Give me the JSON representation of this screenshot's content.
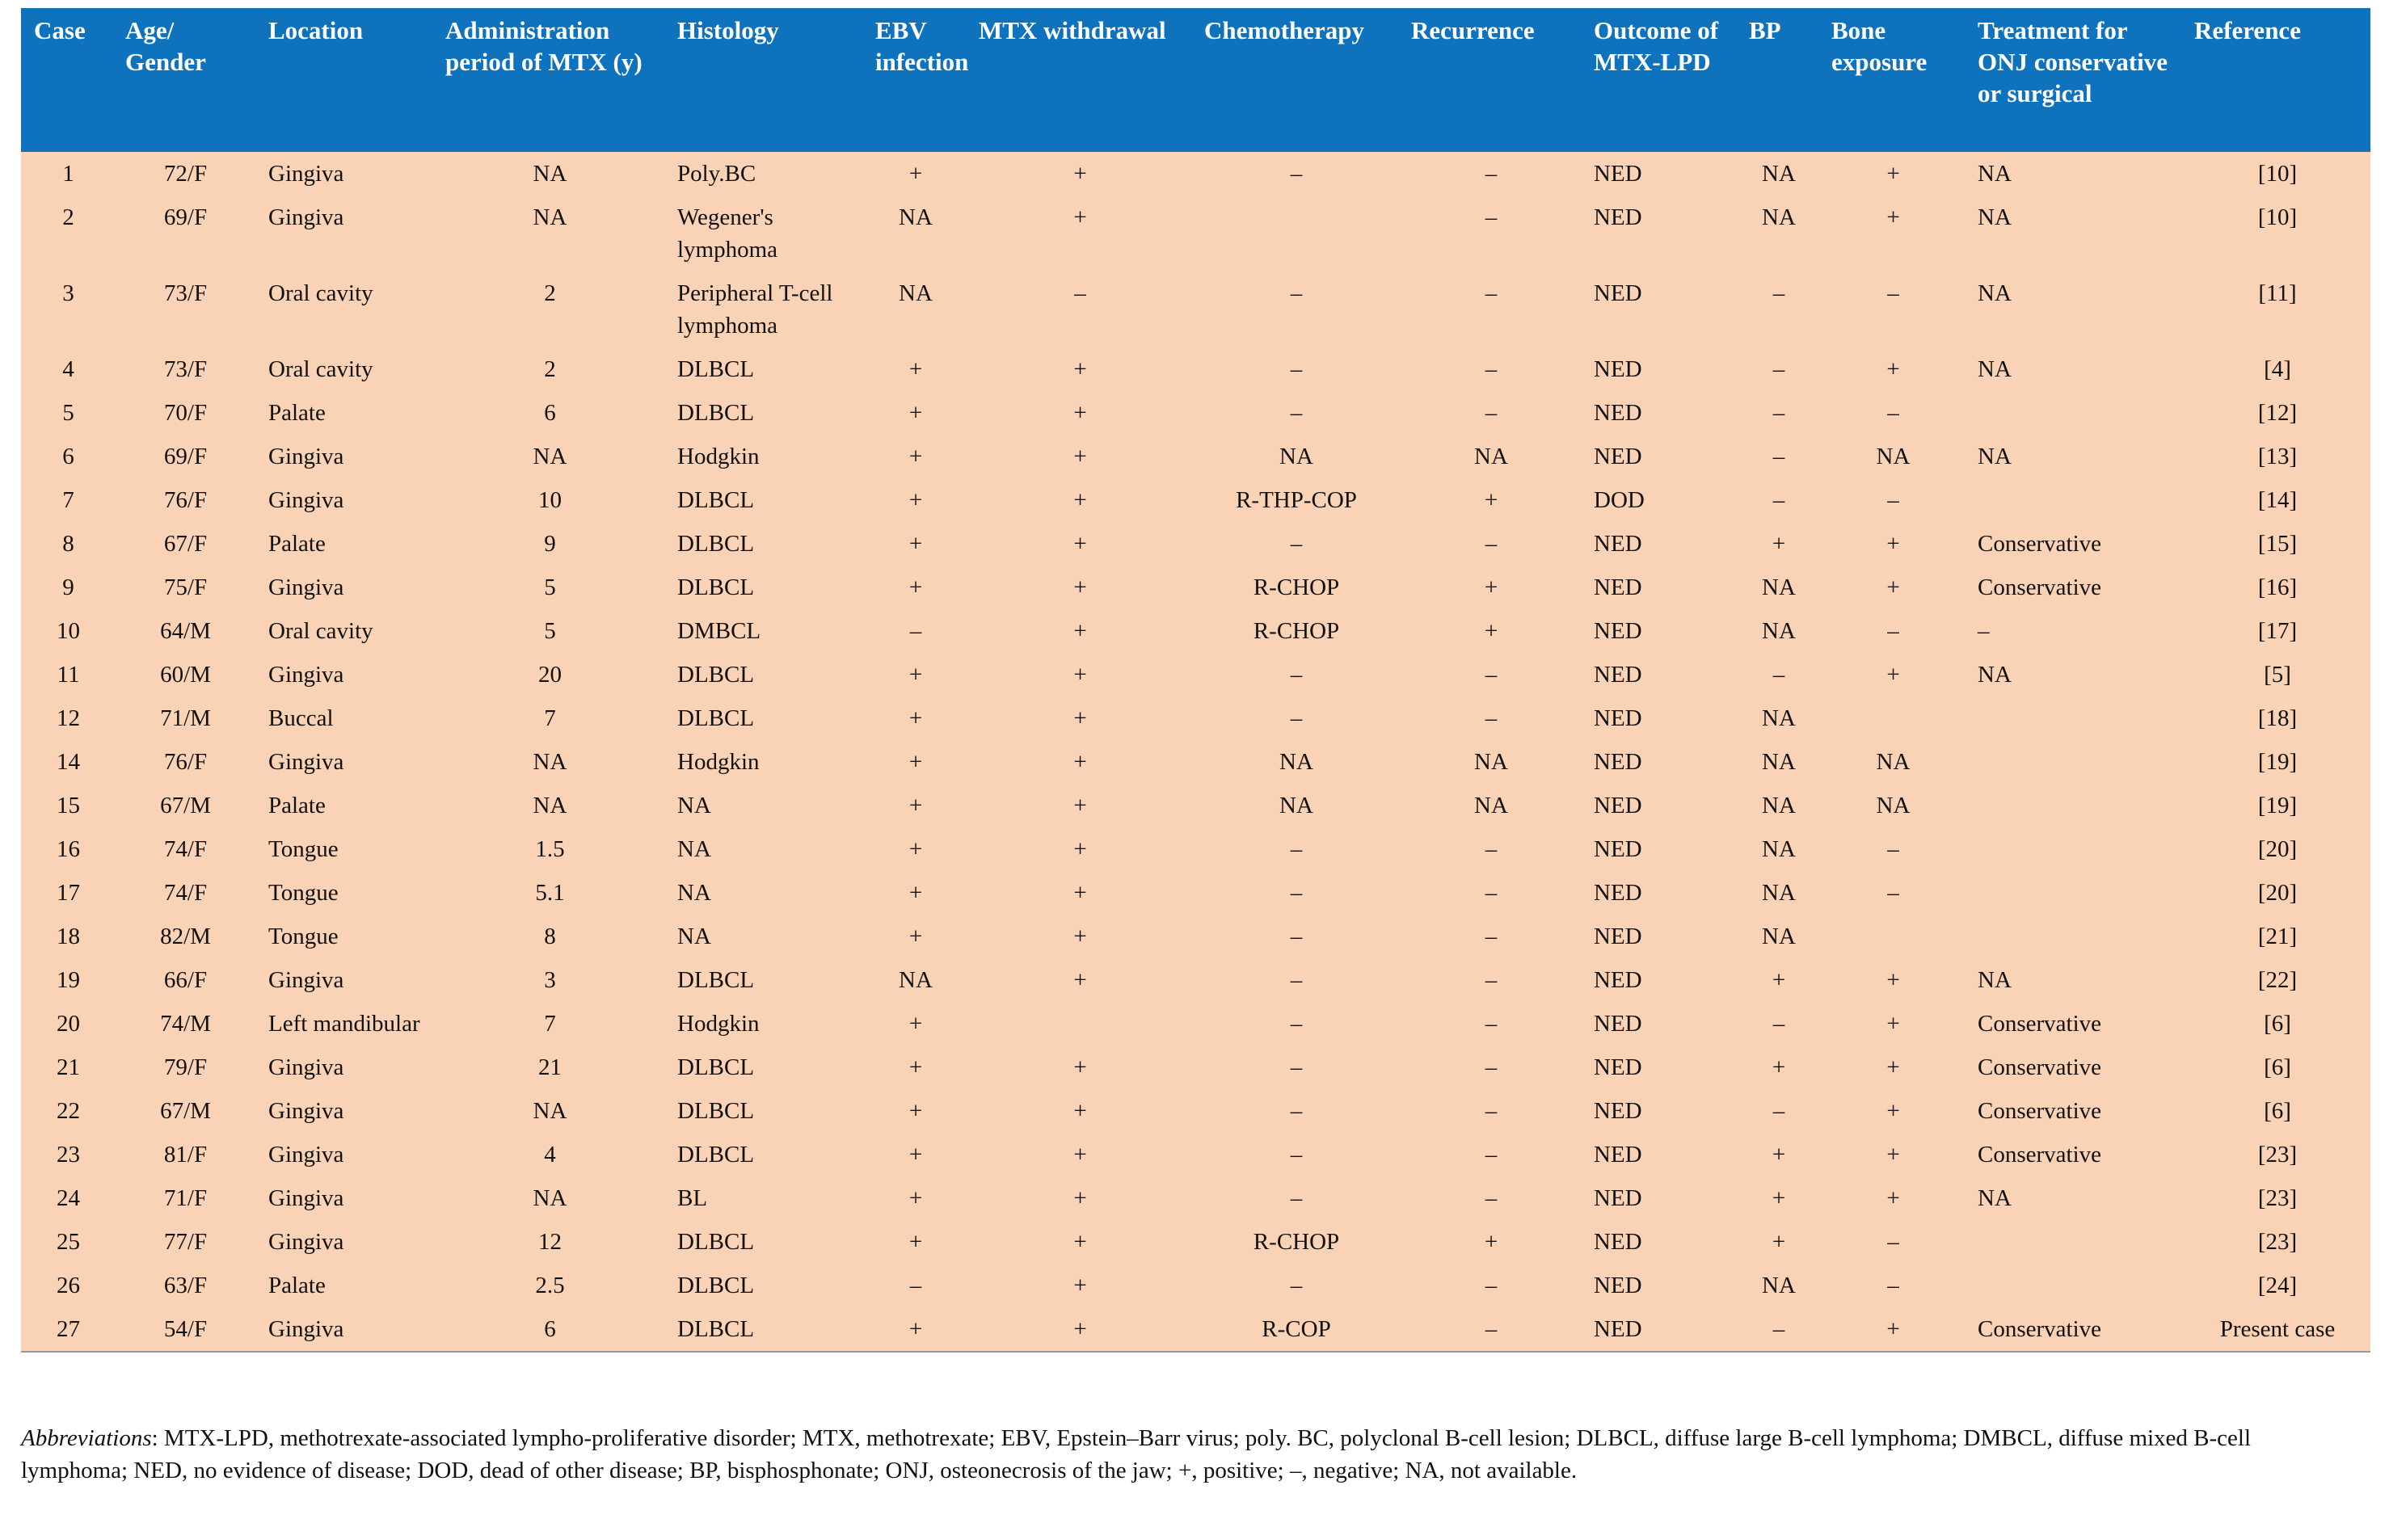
{
  "header": {
    "columns": [
      "Case",
      "Age/ Gender",
      "Location",
      "Administration period of MTX (y)",
      "Histology",
      "EBV infection",
      "MTX withdrawal",
      "Chemotherapy",
      "Recurrence",
      "Outcome of MTX-LPD",
      "BP",
      "Bone exposure",
      "Treatment for ONJ conservative or surgical",
      "Reference"
    ]
  },
  "table": {
    "rows": [
      [
        "1",
        "72/F",
        "Gingiva",
        "NA",
        "Poly.BC",
        "+",
        "+",
        "–",
        "–",
        "NED",
        "NA",
        "+",
        "NA",
        "[10]"
      ],
      [
        "2",
        "69/F",
        "Gingiva",
        "NA",
        "Wegener's lymphoma",
        "NA",
        "+",
        null,
        "–",
        "NED",
        "NA",
        "+",
        "NA",
        "[10]"
      ],
      [
        "3",
        "73/F",
        "Oral cavity",
        "2",
        "Peripheral T-cell lymphoma",
        "NA",
        "–",
        "–",
        "–",
        "NED",
        "–",
        "–",
        "NA",
        "[11]"
      ],
      [
        "4",
        "73/F",
        "Oral cavity",
        "2",
        "DLBCL",
        "+",
        "+",
        "–",
        "–",
        "NED",
        "–",
        "+",
        "NA",
        "[4]"
      ],
      [
        "5",
        "70/F",
        "Palate",
        "6",
        "DLBCL",
        "+",
        "+",
        "–",
        "–",
        "NED",
        "–",
        "–",
        null,
        "[12]"
      ],
      [
        "6",
        "69/F",
        "Gingiva",
        "NA",
        "Hodgkin",
        "+",
        "+",
        "NA",
        "NA",
        "NED",
        "–",
        "NA",
        "NA",
        "[13]"
      ],
      [
        "7",
        "76/F",
        "Gingiva",
        "10",
        "DLBCL",
        "+",
        "+",
        "R-THP-COP",
        "+",
        "DOD",
        "–",
        "–",
        null,
        "[14]"
      ],
      [
        "8",
        "67/F",
        "Palate",
        "9",
        "DLBCL",
        "+",
        "+",
        "–",
        "–",
        "NED",
        "+",
        "+",
        "Conservative",
        "[15]"
      ],
      [
        "9",
        "75/F",
        "Gingiva",
        "5",
        "DLBCL",
        "+",
        "+",
        "R-CHOP",
        "+",
        "NED",
        "NA",
        "+",
        "Conservative",
        "[16]"
      ],
      [
        "10",
        "64/M",
        "Oral cavity",
        "5",
        "DMBCL",
        "–",
        "+",
        "R-CHOP",
        "+",
        "NED",
        "NA",
        "–",
        "–",
        "[17]"
      ],
      [
        "11",
        "60/M",
        "Gingiva",
        "20",
        "DLBCL",
        "+",
        "+",
        "–",
        "–",
        "NED",
        "–",
        "+",
        "NA",
        "[5]"
      ],
      [
        "12",
        "71/M",
        "Buccal",
        "7",
        "DLBCL",
        "+",
        "+",
        "–",
        "–",
        "NED",
        "NA",
        null,
        null,
        "[18]"
      ],
      [
        "14",
        "76/F",
        "Gingiva",
        "NA",
        "Hodgkin",
        "+",
        "+",
        "NA",
        "NA",
        "NED",
        "NA",
        "NA",
        null,
        "[19]"
      ],
      [
        "15",
        "67/M",
        "Palate",
        "NA",
        "NA",
        "+",
        "+",
        "NA",
        "NA",
        "NED",
        "NA",
        "NA",
        null,
        "[19]"
      ],
      [
        "16",
        "74/F",
        "Tongue",
        "1.5",
        "NA",
        "+",
        "+",
        "–",
        "–",
        "NED",
        "NA",
        "–",
        null,
        "[20]"
      ],
      [
        "17",
        "74/F",
        "Tongue",
        "5.1",
        "NA",
        "+",
        "+",
        "–",
        "–",
        "NED",
        "NA",
        "–",
        null,
        "[20]"
      ],
      [
        "18",
        "82/M",
        "Tongue",
        "8",
        "NA",
        "+",
        "+",
        "–",
        "–",
        "NED",
        "NA",
        null,
        null,
        "[21]"
      ],
      [
        "19",
        "66/F",
        "Gingiva",
        "3",
        "DLBCL",
        "NA",
        "+",
        "–",
        "–",
        "NED",
        "+",
        "+",
        "NA",
        "[22]"
      ],
      [
        "20",
        "74/M",
        "Left mandibular",
        "7",
        "Hodgkin",
        "+",
        null,
        "–",
        "–",
        "NED",
        "–",
        "+",
        "Conservative",
        "[6]"
      ],
      [
        "21",
        "79/F",
        "Gingiva",
        "21",
        "DLBCL",
        "+",
        "+",
        "–",
        "–",
        "NED",
        "+",
        "+",
        "Conservative",
        "[6]"
      ],
      [
        "22",
        "67/M",
        "Gingiva",
        "NA",
        "DLBCL",
        "+",
        "+",
        "–",
        "–",
        "NED",
        "–",
        "+",
        "Conservative",
        "[6]"
      ],
      [
        "23",
        "81/F",
        "Gingiva",
        "4",
        "DLBCL",
        "+",
        "+",
        "–",
        "–",
        "NED",
        "+",
        "+",
        "Conservative",
        "[23]"
      ],
      [
        "24",
        "71/F",
        "Gingiva",
        "NA",
        "BL",
        "+",
        "+",
        "–",
        "–",
        "NED",
        "+",
        "+",
        "NA",
        "[23]"
      ],
      [
        "25",
        "77/F",
        "Gingiva",
        "12",
        "DLBCL",
        "+",
        "+",
        "R-CHOP",
        "+",
        "NED",
        "+",
        "–",
        null,
        "[23]"
      ],
      [
        "26",
        "63/F",
        "Palate",
        "2.5",
        "DLBCL",
        "–",
        "+",
        "–",
        "–",
        "NED",
        "NA",
        "–",
        null,
        "[24]"
      ],
      [
        "27",
        "54/F",
        "Gingiva",
        "6",
        "DLBCL",
        "+",
        "+",
        "R-COP",
        "–",
        "NED",
        "–",
        "+",
        "Conservative",
        "Present case"
      ]
    ]
  },
  "footer": {
    "label": "Abbreviations",
    "text": ": MTX-LPD, methotrexate-associated lympho-proliferative disorder; MTX, methotrexate; EBV, Epstein–Barr virus; poly. BC, polyclonal B-cell lesion; DLBCL, diffuse large B-cell lymphoma; DMBCL, diffuse mixed B-cell lymphoma; NED, no evidence of disease; DOD, dead of other disease; BP, bisphosphonate; ONJ, osteonecrosis of the jaw; +, positive; –, negative; NA, not available."
  }
}
